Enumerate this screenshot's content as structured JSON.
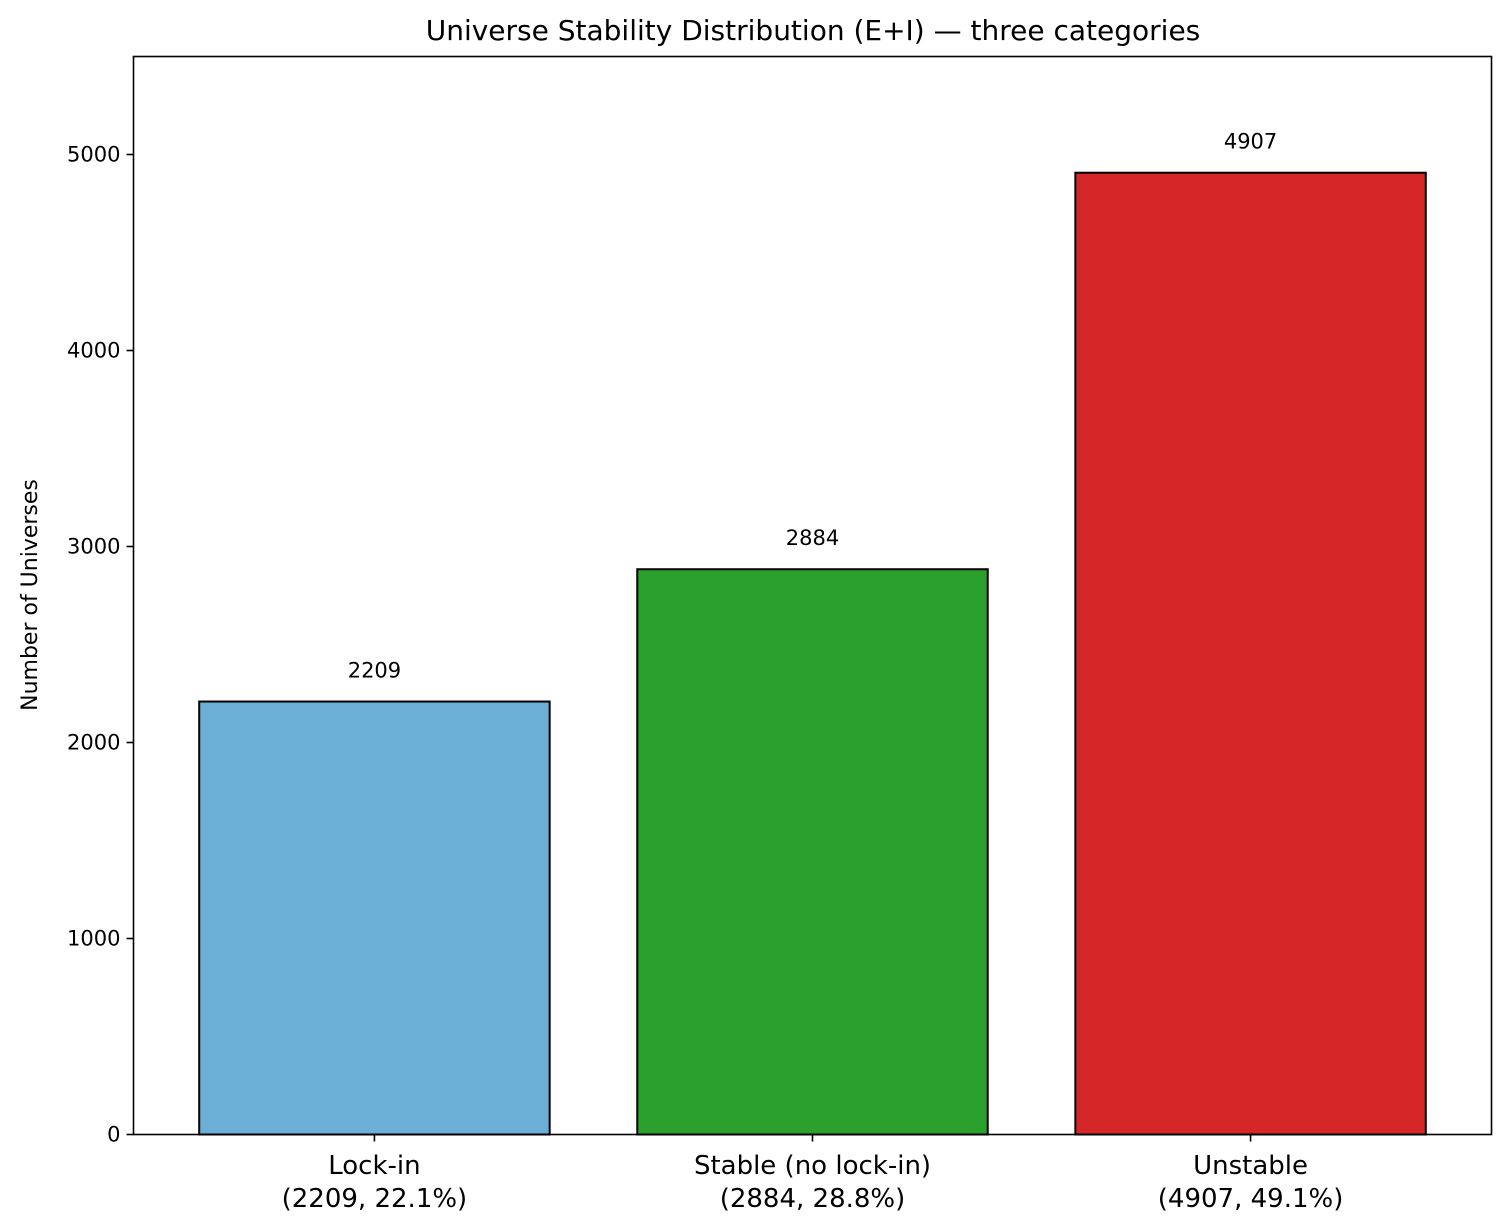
{
  "chart_data": {
    "type": "bar",
    "title": "Universe Stability Distribution (E+I) — three categories",
    "xlabel": "",
    "ylabel": "Number of Universes",
    "categories": [
      "Lock-in",
      "Stable (no lock-in)",
      "Unstable"
    ],
    "category_details": [
      "(2209, 22.1%)",
      "(2884, 28.8%)",
      "(4907, 49.1%)"
    ],
    "values": [
      2209,
      2884,
      4907
    ],
    "value_labels": [
      "2209",
      "2884",
      "4907"
    ],
    "colors": [
      "#6baed6",
      "#2ca02c",
      "#d62728"
    ],
    "edge_color": "#000000",
    "yticks": [
      0,
      1000,
      2000,
      3000,
      4000,
      5000
    ],
    "ytick_labels": [
      "0",
      "1000",
      "2000",
      "3000",
      "4000",
      "5000"
    ],
    "ylim": [
      0,
      5500
    ],
    "grid": false,
    "legend": false
  }
}
